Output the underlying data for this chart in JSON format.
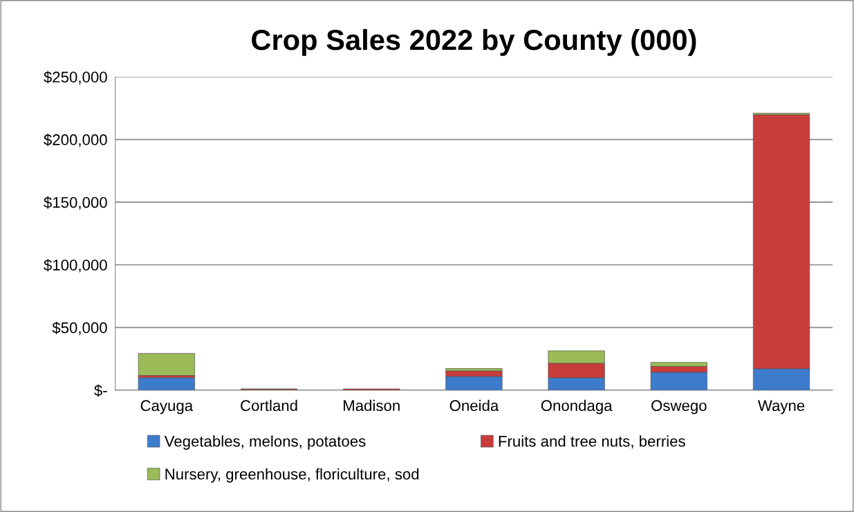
{
  "chart_data": {
    "type": "bar",
    "title": "Crop Sales 2022 by County (000)",
    "stacked": true,
    "categories": [
      "Cayuga",
      "Cortland",
      "Madison",
      "Oneida",
      "Onondaga",
      "Oswego",
      "Wayne"
    ],
    "series": [
      {
        "name": "Vegetables, melons, potatoes",
        "color": "#3d7ccc",
        "values": [
          10000,
          0,
          0,
          11000,
          9900,
          14300,
          17100
        ]
      },
      {
        "name": "Fruits and tree nuts, berries",
        "color": "#c83c3a",
        "values": [
          1800,
          800,
          1000,
          4400,
          11600,
          4700,
          202700
        ]
      },
      {
        "name": "Nursery, greenhouse, floriculture, sod",
        "color": "#9bbb59",
        "values": [
          17500,
          200,
          0,
          1900,
          9900,
          3200,
          1200
        ]
      }
    ],
    "ylim": [
      0,
      250000
    ],
    "yticks": [
      {
        "value": 0,
        "label": "$-"
      },
      {
        "value": 50000,
        "label": "$50,000"
      },
      {
        "value": 100000,
        "label": "$100,000"
      },
      {
        "value": 150000,
        "label": "$150,000"
      },
      {
        "value": 200000,
        "label": "$200,000"
      },
      {
        "value": 250000,
        "label": "$250,000"
      }
    ],
    "grid": "y",
    "legend": "bottom"
  }
}
